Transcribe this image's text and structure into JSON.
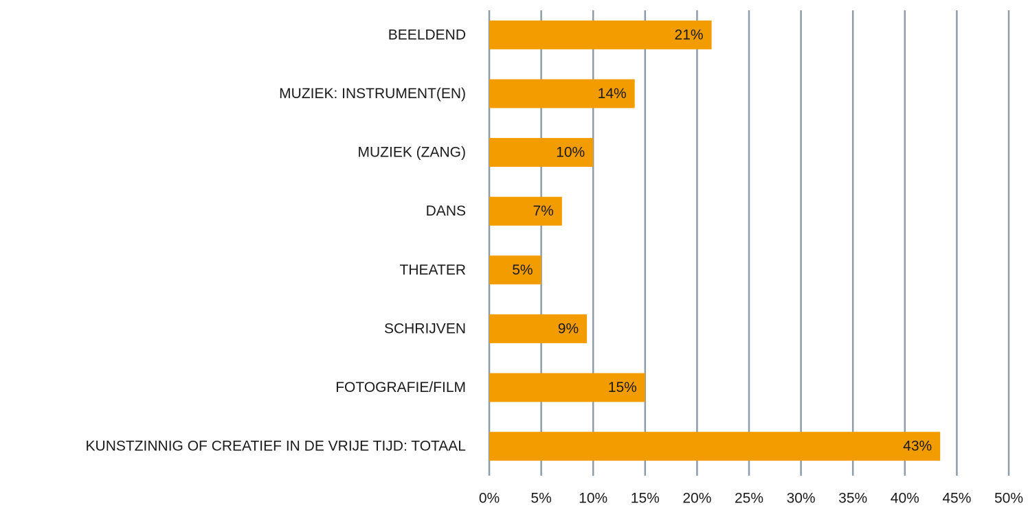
{
  "chart_data": {
    "type": "hbar",
    "categories": [
      "BEELDEND",
      "MUZIEK: INSTRUMENT(EN)",
      "MUZIEK (ZANG)",
      "DANS",
      "THEATER",
      "SCHRIJVEN",
      "FOTOGRAFIE/FILM",
      "KUNSTZINNIG OF CREATIEF IN DE VRIJE TIJD: TOTAAL"
    ],
    "values": [
      21.4,
      14,
      10,
      7,
      5,
      9.4,
      15,
      43.4
    ],
    "value_labels": [
      "21%",
      "14%",
      "10%",
      "7%",
      "5%",
      "9%",
      "15%",
      "43%"
    ],
    "color": "#f39c00",
    "xlim": [
      0,
      50
    ],
    "xticks": [
      {
        "value": 0,
        "label": "0%"
      },
      {
        "value": 5,
        "label": "5%"
      },
      {
        "value": 10,
        "label": "10%"
      },
      {
        "value": 15,
        "label": "15%"
      },
      {
        "value": 20,
        "label": "20%"
      },
      {
        "value": 25,
        "label": "25%"
      },
      {
        "value": 30,
        "label": "30%"
      },
      {
        "value": 35,
        "label": "35%"
      },
      {
        "value": 40,
        "label": "40%"
      },
      {
        "value": 45,
        "label": "45%"
      },
      {
        "value": 50,
        "label": "50%"
      }
    ],
    "grid": true
  }
}
